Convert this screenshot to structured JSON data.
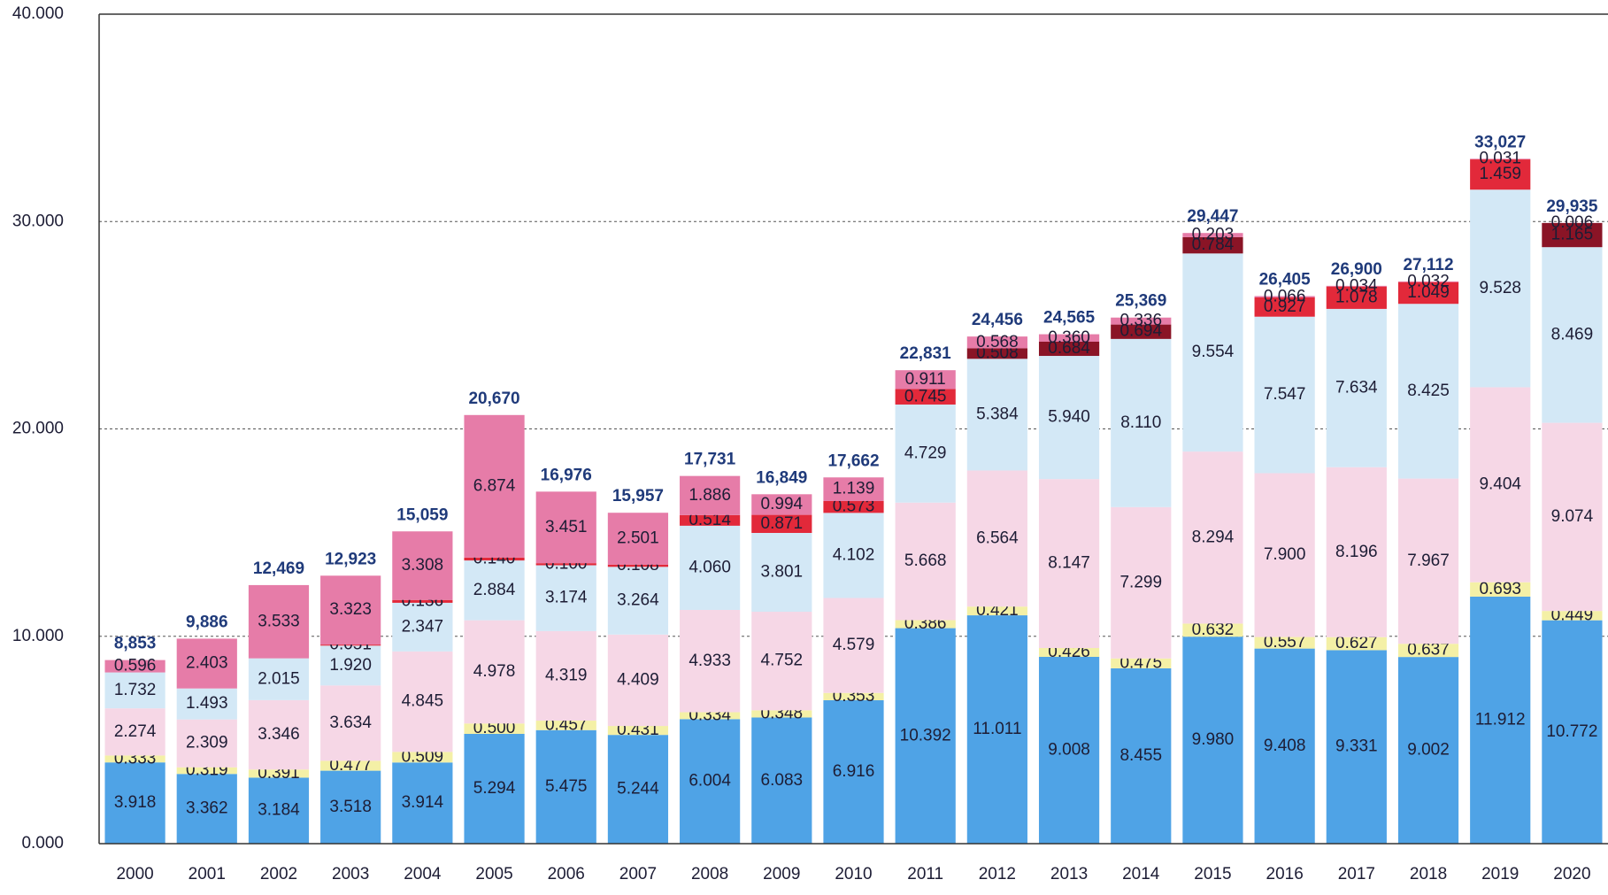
{
  "chart_data": {
    "type": "stacked_bar",
    "categories": [
      "2000",
      "2001",
      "2002",
      "2003",
      "2004",
      "2005",
      "2006",
      "2007",
      "2008",
      "2009",
      "2010",
      "2011",
      "2012",
      "2013",
      "2014",
      "2015",
      "2016",
      "2017",
      "2018",
      "2019",
      "2020"
    ],
    "ylim": [
      0,
      40
    ],
    "yticks": [
      {
        "value": 0,
        "label": "0.000"
      },
      {
        "value": 10,
        "label": "10.000"
      },
      {
        "value": 20,
        "label": "20.000"
      },
      {
        "value": 30,
        "label": "30.000"
      },
      {
        "value": 40,
        "label": "40.000"
      }
    ],
    "grid": true,
    "series": [
      {
        "color": "#4fa3e6",
        "values": [
          3.918,
          3.362,
          3.184,
          3.518,
          3.914,
          5.294,
          5.475,
          5.244,
          6.004,
          6.083,
          6.916,
          10.392,
          11.011,
          9.008,
          8.455,
          9.98,
          9.408,
          9.331,
          9.002,
          11.912,
          10.772
        ],
        "value_labels": [
          "3.918",
          "3.362",
          "3.184",
          "3.518",
          "3.914",
          "5.294",
          "5.475",
          "5.244",
          "6.004",
          "6.083",
          "6.916",
          "10.392",
          "11.011",
          "9.008",
          "8.455",
          "9.980",
          "9.408",
          "9.331",
          "9.002",
          "11.912",
          "10.772"
        ]
      },
      {
        "color": "#f4f0a6",
        "values": [
          0.333,
          0.319,
          0.391,
          0.477,
          0.509,
          0.5,
          0.457,
          0.431,
          0.334,
          0.348,
          0.353,
          0.386,
          0.421,
          0.426,
          0.475,
          0.632,
          0.557,
          0.627,
          0.637,
          0.693,
          0.449
        ],
        "value_labels": [
          "0.333",
          "0.319",
          "0.391",
          "0.477",
          "0.509",
          "0.500",
          "0.457",
          "0.431",
          "0.334",
          "0.348",
          "0.353",
          "0.386",
          "0.421",
          "0.426",
          "0.475",
          "0.632",
          "0.557",
          "0.627",
          "0.637",
          "0.693",
          "0.449"
        ]
      },
      {
        "color": "#f6d7e6",
        "values": [
          2.274,
          2.309,
          3.346,
          3.634,
          4.845,
          4.978,
          4.319,
          4.409,
          4.933,
          4.752,
          4.579,
          5.668,
          6.564,
          8.147,
          7.299,
          8.294,
          7.9,
          8.196,
          7.967,
          9.404,
          9.074
        ],
        "value_labels": [
          "2.274",
          "2.309",
          "3.346",
          "3.634",
          "4.845",
          "4.978",
          "4.319",
          "4.409",
          "4.933",
          "4.752",
          "4.579",
          "5.668",
          "6.564",
          "8.147",
          "7.299",
          "8.294",
          "7.900",
          "8.196",
          "7.967",
          "9.404",
          "9.074"
        ]
      },
      {
        "color": "#d3e8f6",
        "values": [
          1.732,
          1.493,
          2.015,
          1.92,
          2.347,
          2.884,
          3.174,
          3.264,
          4.06,
          3.801,
          4.102,
          4.729,
          5.384,
          5.94,
          8.11,
          9.554,
          7.547,
          7.634,
          8.425,
          9.528,
          8.469
        ],
        "value_labels": [
          "1.732",
          "1.493",
          "2.015",
          "1.920",
          "2.347",
          "2.884",
          "3.174",
          "3.264",
          "4.060",
          "3.801",
          "4.102",
          "4.729",
          "5.384",
          "5.940",
          "8.110",
          "9.554",
          "7.547",
          "7.634",
          "8.425",
          "9.528",
          "8.469"
        ]
      },
      {
        "color": "#e2293a",
        "values": [
          null,
          null,
          null,
          0.051,
          0.136,
          0.14,
          0.1,
          0.108,
          0.514,
          0.871,
          0.573,
          0.745,
          null,
          null,
          null,
          null,
          0.927,
          1.078,
          1.049,
          1.459,
          null
        ],
        "value_labels": [
          null,
          null,
          null,
          "0.051",
          "0.136",
          "0.140",
          "0.100",
          "0.108",
          "0.514",
          "0.871",
          "0.573",
          "0.745",
          null,
          null,
          null,
          null,
          "0.927",
          "1.078",
          "1.049",
          "1.459",
          null
        ]
      },
      {
        "color": "#8a1426",
        "values": [
          null,
          null,
          null,
          null,
          null,
          null,
          null,
          null,
          null,
          null,
          null,
          null,
          0.508,
          0.684,
          0.694,
          0.784,
          null,
          null,
          null,
          null,
          1.165
        ],
        "value_labels": [
          null,
          null,
          null,
          null,
          null,
          null,
          null,
          null,
          null,
          null,
          null,
          null,
          "0.508",
          "0.684",
          "0.694",
          "0.784",
          null,
          null,
          null,
          null,
          "1.165"
        ]
      },
      {
        "color": "#e67ca8",
        "values": [
          0.596,
          2.403,
          3.533,
          3.323,
          3.308,
          6.874,
          3.451,
          2.501,
          1.886,
          0.994,
          1.139,
          0.911,
          0.568,
          0.36,
          0.336,
          0.203,
          0.066,
          0.034,
          0.032,
          0.031,
          0.006
        ],
        "value_labels": [
          "0.596",
          "2.403",
          "3.533",
          "3.323",
          "3.308",
          "6.874",
          "3.451",
          "2.501",
          "1.886",
          "0.994",
          "1.139",
          "0.911",
          "0.568",
          "0.360",
          "0.336",
          "0.203",
          "0.066",
          "0.034",
          "0.032",
          "0.031",
          "0.006"
        ]
      }
    ],
    "totals": {
      "values": [
        8.853,
        9.886,
        12.469,
        12.923,
        15.059,
        20.67,
        16.976,
        15.957,
        17.731,
        16.849,
        17.662,
        22.831,
        24.456,
        24.565,
        25.369,
        29.447,
        26.405,
        26.9,
        27.112,
        33.027,
        29.935
      ],
      "value_labels": [
        "8,853",
        "9,886",
        "12,469",
        "12,923",
        "15,059",
        "20,670",
        "16,976",
        "15,957",
        "17,731",
        "16,849",
        "17,662",
        "22,831",
        "24,456",
        "24,565",
        "25,369",
        "29,447",
        "26,405",
        "26,900",
        "27,112",
        "33,027",
        "29,935"
      ]
    }
  }
}
